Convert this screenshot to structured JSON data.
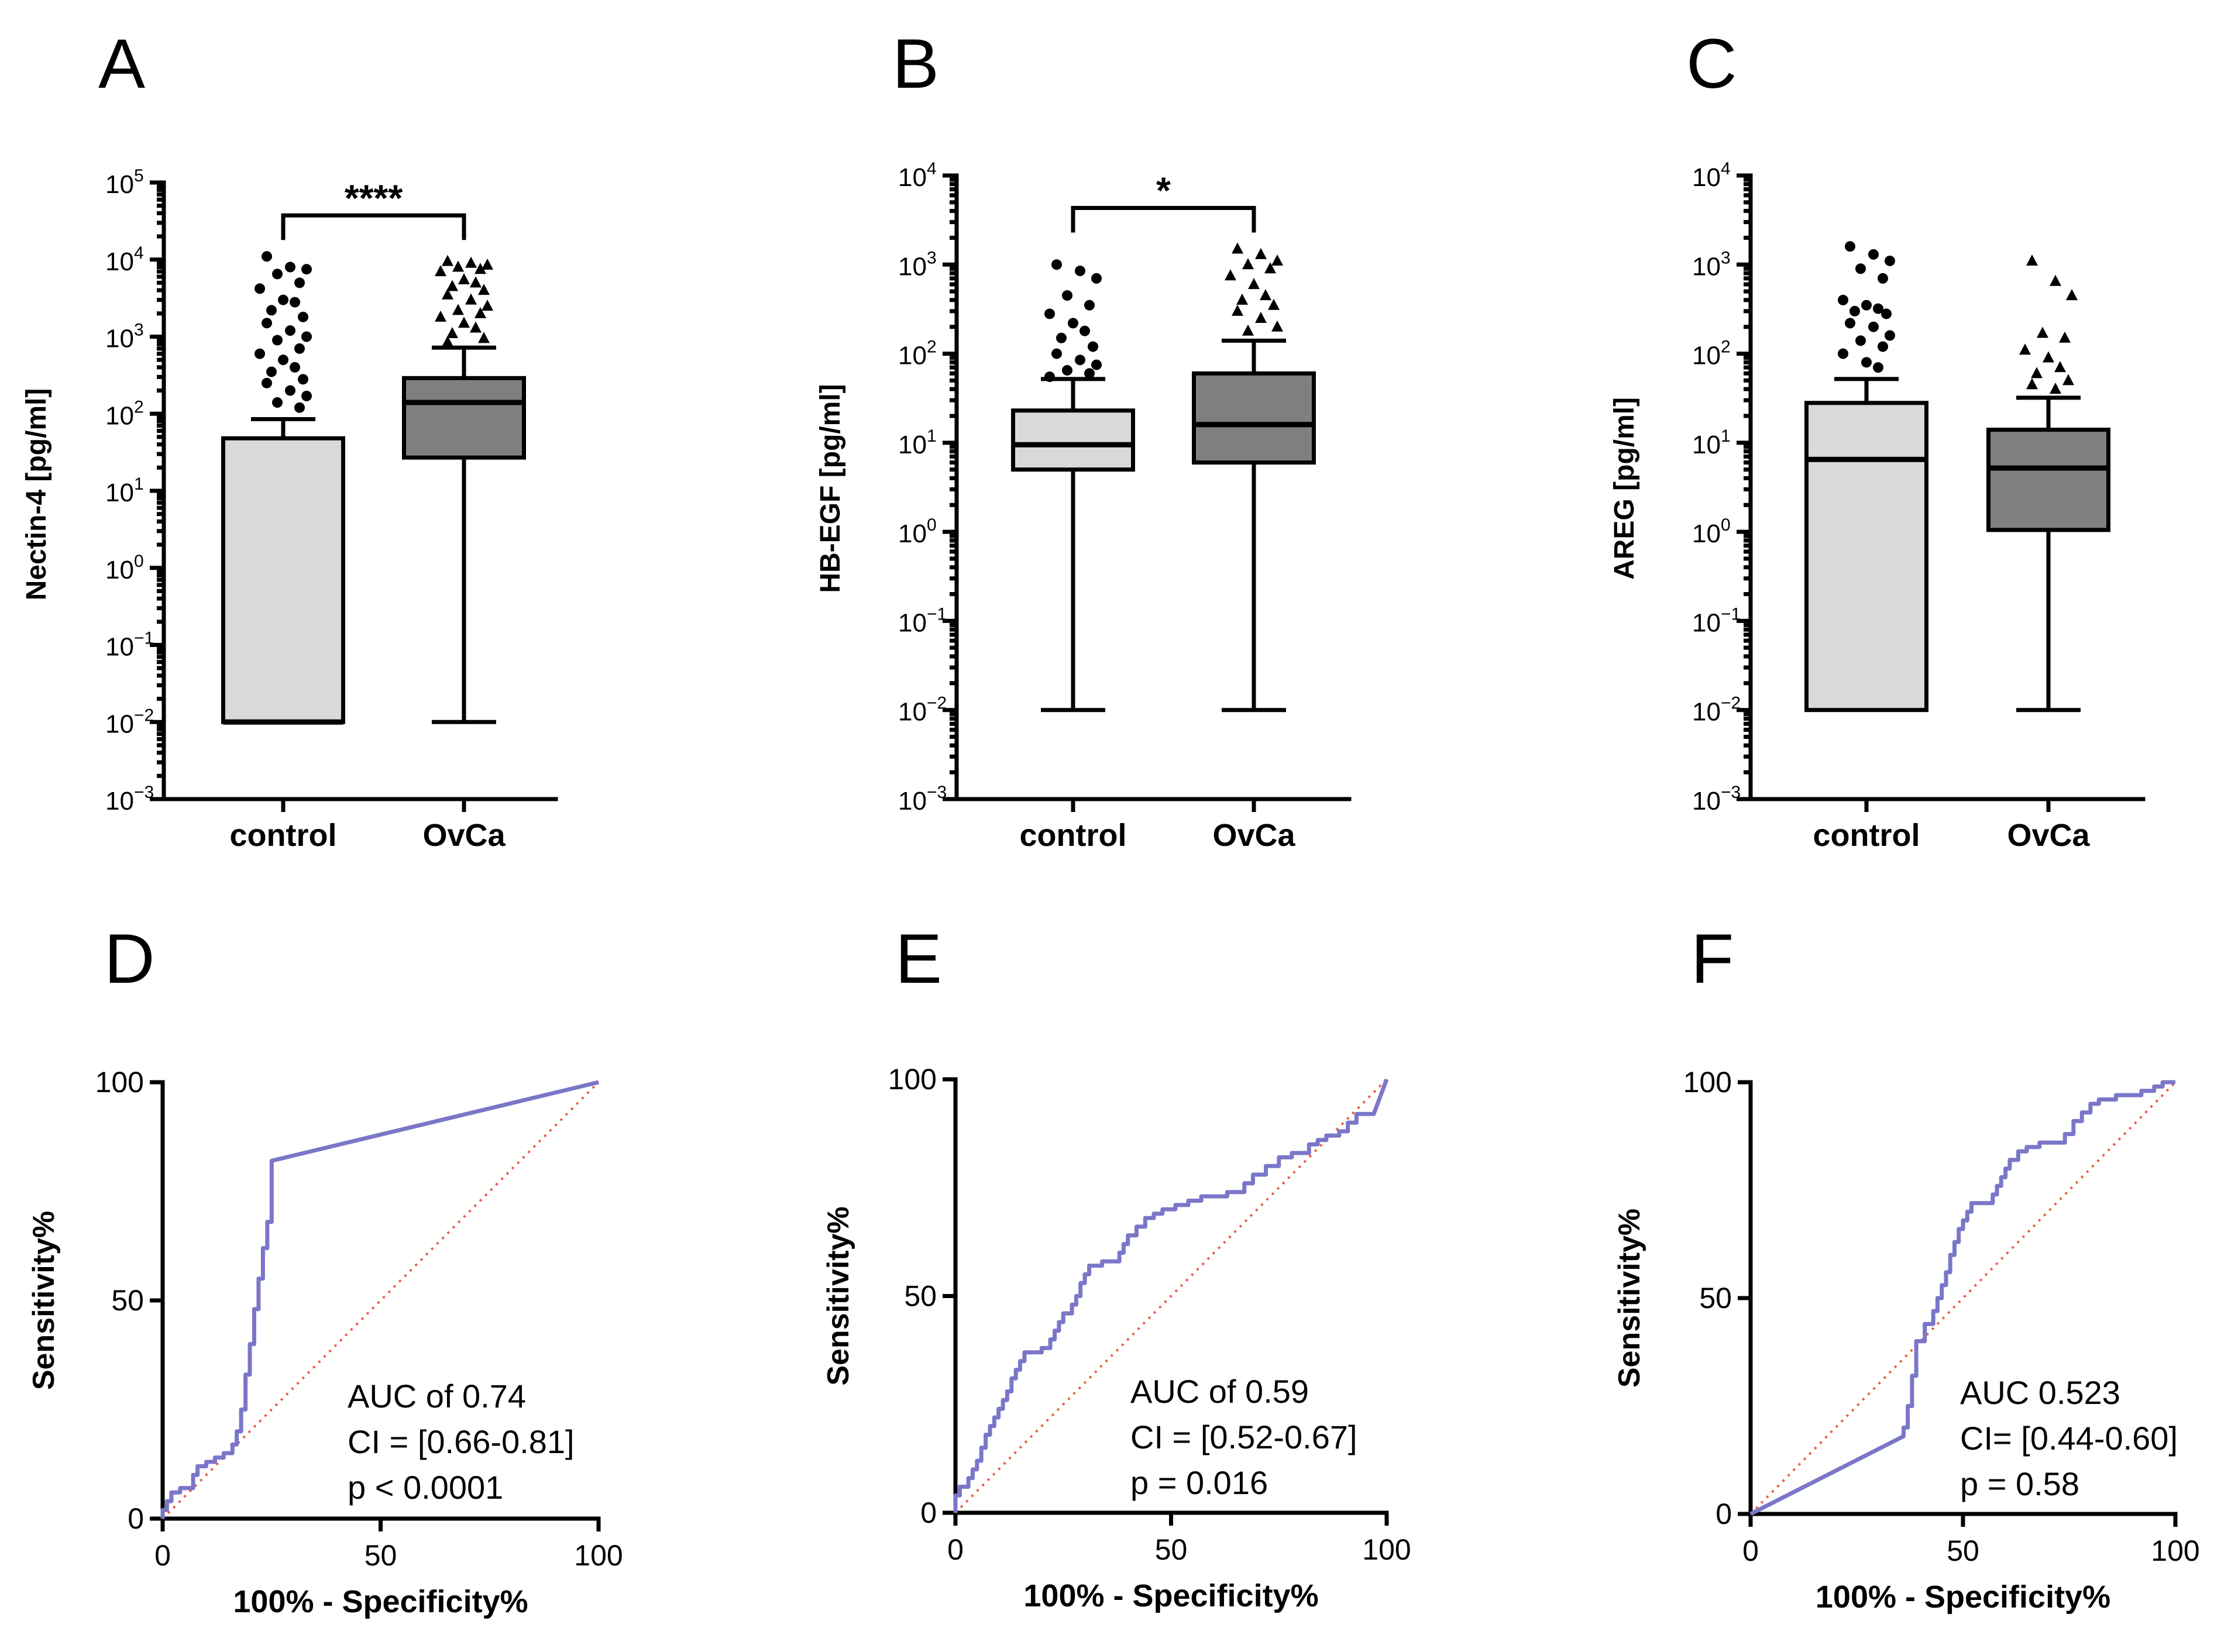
{
  "chart_data": [
    {
      "panel": "A",
      "type": "box",
      "ylabel": "Nectin-4 [pg/ml]",
      "yscale": "log",
      "ylim_exp": [
        -3,
        5
      ],
      "categories": [
        "control",
        "OvCa"
      ],
      "significance": "****",
      "groups": [
        {
          "name": "control",
          "fill": "#d9d9d9",
          "q1": 0.01,
          "median": 0.01,
          "q3": 48,
          "whisker_low": 0.01,
          "whisker_high": 85,
          "marker": "circle",
          "outliers": [
            11000,
            8000,
            7500,
            6500,
            5000,
            4200,
            3000,
            2800,
            2200,
            1800,
            1500,
            1200,
            1000,
            900,
            700,
            600,
            500,
            400,
            350,
            280,
            250,
            200,
            170,
            140,
            120
          ]
        },
        {
          "name": "OvCa",
          "fill": "#7f7f7f",
          "q1": 27,
          "median": 140,
          "q3": 290,
          "whisker_low": 0.01,
          "whisker_high": 720,
          "marker": "triangle",
          "outliers": [
            9500,
            9000,
            8500,
            8000,
            7500,
            7000,
            5500,
            5000,
            4500,
            4000,
            3500,
            3000,
            2500,
            2200,
            2000,
            1800,
            1500,
            1300,
            1100,
            950,
            850
          ]
        }
      ]
    },
    {
      "panel": "B",
      "type": "box",
      "ylabel": "HB-EGF [pg/ml]",
      "yscale": "log",
      "ylim_exp": [
        -3,
        4
      ],
      "categories": [
        "control",
        "OvCa"
      ],
      "significance": "*",
      "groups": [
        {
          "name": "control",
          "fill": "#d9d9d9",
          "q1": 5,
          "median": 9.5,
          "q3": 23,
          "whisker_low": 0.01,
          "whisker_high": 52,
          "marker": "circle",
          "outliers": [
            1000,
            850,
            700,
            450,
            350,
            280,
            220,
            180,
            150,
            120,
            100,
            85,
            75,
            65,
            60,
            55
          ]
        },
        {
          "name": "OvCa",
          "fill": "#7f7f7f",
          "q1": 6,
          "median": 16,
          "q3": 60,
          "whisker_low": 0.01,
          "whisker_high": 140,
          "marker": "triangle",
          "outliers": [
            1500,
            1300,
            1100,
            1000,
            900,
            750,
            600,
            450,
            400,
            350,
            300,
            250,
            200,
            180
          ]
        }
      ]
    },
    {
      "panel": "C",
      "type": "box",
      "ylabel": "AREG [pg/ml]",
      "yscale": "log",
      "ylim_exp": [
        -3,
        4
      ],
      "categories": [
        "control",
        "OvCa"
      ],
      "groups": [
        {
          "name": "control",
          "fill": "#d9d9d9",
          "q1": 0.01,
          "median": 6.5,
          "q3": 28,
          "whisker_low": 0.01,
          "whisker_high": 52,
          "marker": "circle",
          "outliers": [
            1600,
            1300,
            1100,
            900,
            700,
            400,
            350,
            320,
            300,
            280,
            220,
            200,
            160,
            140,
            120,
            100,
            80,
            70
          ]
        },
        {
          "name": "OvCa",
          "fill": "#7f7f7f",
          "q1": 1.05,
          "median": 5.2,
          "q3": 14,
          "whisker_low": 0.01,
          "whisker_high": 32,
          "marker": "triangle",
          "outliers": [
            1100,
            650,
            450,
            170,
            150,
            110,
            90,
            70,
            60,
            50,
            45,
            40
          ]
        }
      ]
    },
    {
      "panel": "D",
      "type": "line",
      "xlabel": "100% - Specificity%",
      "ylabel": "Sensitivity%",
      "xlim": [
        0,
        100
      ],
      "ylim": [
        0,
        100
      ],
      "xticks": [
        0,
        50,
        100
      ],
      "yticks": [
        0,
        50,
        100
      ],
      "annotation": [
        "AUC of 0.74",
        "CI = [0.66-0.81]",
        "p < 0.0001"
      ],
      "roc": [
        [
          0,
          0
        ],
        [
          0,
          2
        ],
        [
          1,
          2
        ],
        [
          1,
          4
        ],
        [
          2,
          4
        ],
        [
          2,
          6
        ],
        [
          4,
          6
        ],
        [
          4,
          7
        ],
        [
          7,
          7
        ],
        [
          7,
          10
        ],
        [
          8,
          10
        ],
        [
          8,
          12
        ],
        [
          10,
          12
        ],
        [
          10,
          13
        ],
        [
          12,
          13
        ],
        [
          12,
          14
        ],
        [
          14,
          14
        ],
        [
          14,
          15
        ],
        [
          16,
          15
        ],
        [
          16,
          17
        ],
        [
          17,
          17
        ],
        [
          17,
          20
        ],
        [
          18,
          20
        ],
        [
          18,
          25
        ],
        [
          19,
          25
        ],
        [
          19,
          33
        ],
        [
          20,
          33
        ],
        [
          20,
          40
        ],
        [
          21,
          40
        ],
        [
          21,
          48
        ],
        [
          22,
          48
        ],
        [
          22,
          55
        ],
        [
          23,
          55
        ],
        [
          23,
          62
        ],
        [
          24,
          62
        ],
        [
          24,
          68
        ],
        [
          25,
          68
        ],
        [
          25,
          82
        ],
        [
          100,
          100
        ]
      ],
      "diagonal": true
    },
    {
      "panel": "E",
      "type": "line",
      "xlabel": "100% - Specificity%",
      "ylabel": "Sensitivity%",
      "xlim": [
        0,
        100
      ],
      "ylim": [
        0,
        100
      ],
      "xticks": [
        0,
        50,
        100
      ],
      "yticks": [
        0,
        50,
        100
      ],
      "annotation": [
        "AUC of 0.59",
        "CI = [0.52-0.67]",
        "p = 0.016"
      ],
      "roc": [
        [
          0,
          0
        ],
        [
          0,
          4
        ],
        [
          1,
          4
        ],
        [
          1,
          6
        ],
        [
          3,
          6
        ],
        [
          3,
          8
        ],
        [
          4,
          8
        ],
        [
          4,
          10
        ],
        [
          5,
          10
        ],
        [
          5,
          12
        ],
        [
          6,
          12
        ],
        [
          6,
          15
        ],
        [
          7,
          15
        ],
        [
          7,
          18
        ],
        [
          8,
          18
        ],
        [
          8,
          20
        ],
        [
          9,
          20
        ],
        [
          9,
          22
        ],
        [
          10,
          22
        ],
        [
          10,
          24
        ],
        [
          11,
          24
        ],
        [
          11,
          26
        ],
        [
          12,
          26
        ],
        [
          12,
          28
        ],
        [
          13,
          28
        ],
        [
          13,
          31
        ],
        [
          14,
          31
        ],
        [
          14,
          33
        ],
        [
          15,
          33
        ],
        [
          15,
          35
        ],
        [
          16,
          35
        ],
        [
          16,
          37
        ],
        [
          20,
          37
        ],
        [
          20,
          38
        ],
        [
          22,
          38
        ],
        [
          22,
          40
        ],
        [
          23,
          40
        ],
        [
          23,
          42
        ],
        [
          24,
          42
        ],
        [
          24,
          44
        ],
        [
          25,
          44
        ],
        [
          25,
          46
        ],
        [
          27,
          46
        ],
        [
          27,
          48
        ],
        [
          28,
          48
        ],
        [
          28,
          50
        ],
        [
          29,
          50
        ],
        [
          29,
          53
        ],
        [
          30,
          53
        ],
        [
          30,
          55
        ],
        [
          31,
          55
        ],
        [
          31,
          57
        ],
        [
          34,
          57
        ],
        [
          34,
          58
        ],
        [
          38,
          58
        ],
        [
          38,
          60
        ],
        [
          39,
          60
        ],
        [
          39,
          62
        ],
        [
          40,
          62
        ],
        [
          40,
          64
        ],
        [
          42,
          64
        ],
        [
          42,
          66
        ],
        [
          44,
          66
        ],
        [
          44,
          68
        ],
        [
          46,
          68
        ],
        [
          46,
          69
        ],
        [
          48,
          69
        ],
        [
          48,
          70
        ],
        [
          51,
          70
        ],
        [
          51,
          71
        ],
        [
          54,
          71
        ],
        [
          54,
          72
        ],
        [
          57,
          72
        ],
        [
          57,
          73
        ],
        [
          63,
          73
        ],
        [
          63,
          74
        ],
        [
          67,
          74
        ],
        [
          67,
          76
        ],
        [
          69,
          76
        ],
        [
          69,
          78
        ],
        [
          72,
          78
        ],
        [
          72,
          80
        ],
        [
          75,
          80
        ],
        [
          75,
          82
        ],
        [
          78,
          82
        ],
        [
          78,
          83
        ],
        [
          82,
          83
        ],
        [
          82,
          85
        ],
        [
          84,
          85
        ],
        [
          84,
          86
        ],
        [
          86,
          86
        ],
        [
          86,
          87
        ],
        [
          89,
          87
        ],
        [
          89,
          88
        ],
        [
          91,
          88
        ],
        [
          91,
          90
        ],
        [
          93,
          90
        ],
        [
          93,
          92
        ],
        [
          97,
          92
        ],
        [
          100,
          100
        ]
      ],
      "diagonal": true
    },
    {
      "panel": "F",
      "type": "line",
      "xlabel": "100% - Specificity%",
      "ylabel": "Sensitivity%",
      "xlim": [
        0,
        100
      ],
      "ylim": [
        0,
        100
      ],
      "xticks": [
        0,
        50,
        100
      ],
      "yticks": [
        0,
        50,
        100
      ],
      "annotation": [
        "AUC 0.523",
        "CI= [0.44-0.60]",
        "p = 0.58"
      ],
      "roc": [
        [
          0,
          0
        ],
        [
          36,
          18
        ],
        [
          36,
          20
        ],
        [
          37,
          20
        ],
        [
          37,
          25
        ],
        [
          38,
          25
        ],
        [
          38,
          32
        ],
        [
          39,
          32
        ],
        [
          39,
          40
        ],
        [
          41,
          40
        ],
        [
          41,
          44
        ],
        [
          43,
          44
        ],
        [
          43,
          47
        ],
        [
          44,
          47
        ],
        [
          44,
          50
        ],
        [
          45,
          50
        ],
        [
          45,
          53
        ],
        [
          46,
          53
        ],
        [
          46,
          56
        ],
        [
          47,
          56
        ],
        [
          47,
          60
        ],
        [
          48,
          60
        ],
        [
          48,
          63
        ],
        [
          49,
          63
        ],
        [
          49,
          66
        ],
        [
          50,
          66
        ],
        [
          50,
          68
        ],
        [
          51,
          68
        ],
        [
          51,
          70
        ],
        [
          52,
          70
        ],
        [
          52,
          72
        ],
        [
          57,
          72
        ],
        [
          57,
          74
        ],
        [
          58,
          74
        ],
        [
          58,
          76
        ],
        [
          59,
          76
        ],
        [
          59,
          78
        ],
        [
          60,
          78
        ],
        [
          60,
          80
        ],
        [
          61,
          80
        ],
        [
          61,
          82
        ],
        [
          63,
          82
        ],
        [
          63,
          84
        ],
        [
          65,
          84
        ],
        [
          65,
          85
        ],
        [
          68,
          85
        ],
        [
          68,
          86
        ],
        [
          74,
          86
        ],
        [
          74,
          88
        ],
        [
          76,
          88
        ],
        [
          76,
          91
        ],
        [
          78,
          91
        ],
        [
          78,
          93
        ],
        [
          80,
          93
        ],
        [
          80,
          95
        ],
        [
          82,
          95
        ],
        [
          82,
          96
        ],
        [
          86,
          96
        ],
        [
          86,
          97
        ],
        [
          92,
          97
        ],
        [
          92,
          98
        ],
        [
          95,
          98
        ],
        [
          95,
          99
        ],
        [
          97,
          99
        ],
        [
          97,
          100
        ],
        [
          100,
          100
        ]
      ],
      "diagonal": true
    }
  ]
}
